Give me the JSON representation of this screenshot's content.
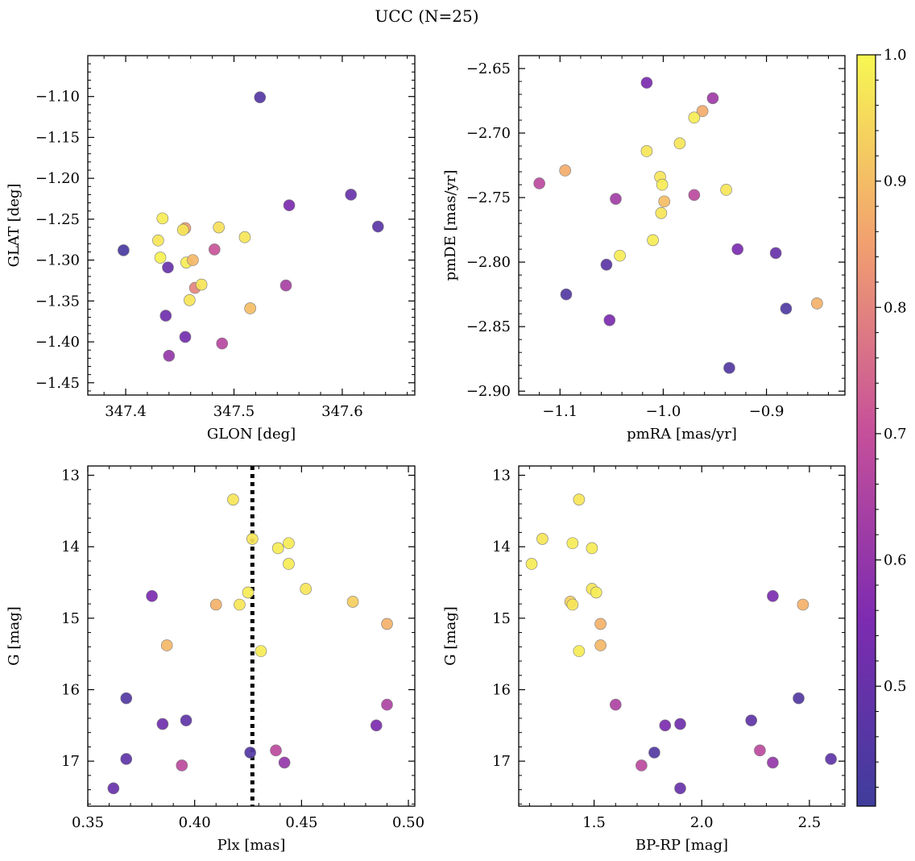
{
  "title": "UCC (N=25)",
  "colorbar": {
    "range": [
      0.405,
      1.0
    ],
    "ticks": [
      0.5,
      0.6,
      0.7,
      0.8,
      0.9,
      1.0
    ],
    "tick_labels": [
      "0.5",
      "0.6",
      "0.7",
      "0.8",
      "0.9",
      "1.0"
    ],
    "colormap": "plasma",
    "stops": [
      [
        0.0,
        "#3f3d9c"
      ],
      [
        0.25,
        "#7d2bb0"
      ],
      [
        0.5,
        "#c6509a"
      ],
      [
        0.75,
        "#f2a06f"
      ],
      [
        1.0,
        "#f7f752"
      ]
    ]
  },
  "chart_data": [
    {
      "type": "scatter",
      "xlabel": "GLON [deg]",
      "ylabel": "GLAT [deg]",
      "xlim": [
        347.365,
        347.667
      ],
      "ylim": [
        -1.465,
        -1.05
      ],
      "xticks": [
        347.4,
        347.5,
        347.6
      ],
      "xtick_labels": [
        "347.4",
        "347.5",
        "347.6"
      ],
      "yticks": [
        -1.1,
        -1.15,
        -1.2,
        -1.25,
        -1.3,
        -1.35,
        -1.4,
        -1.45
      ],
      "ytick_labels": [
        "−1.10",
        "−1.15",
        "−1.20",
        "−1.25",
        "−1.30",
        "−1.35",
        "−1.40",
        "−1.45"
      ],
      "points": [
        {
          "x": 347.524,
          "y": -1.101,
          "c": 0.46
        },
        {
          "x": 347.398,
          "y": -1.288,
          "c": 0.43
        },
        {
          "x": 347.434,
          "y": -1.249,
          "c": 0.98
        },
        {
          "x": 347.43,
          "y": -1.276,
          "c": 0.97
        },
        {
          "x": 347.432,
          "y": -1.297,
          "c": 0.99
        },
        {
          "x": 347.439,
          "y": -1.309,
          "c": 0.5
        },
        {
          "x": 347.437,
          "y": -1.368,
          "c": 0.52
        },
        {
          "x": 347.44,
          "y": -1.417,
          "c": 0.6
        },
        {
          "x": 347.455,
          "y": -1.261,
          "c": 0.85
        },
        {
          "x": 347.453,
          "y": -1.263,
          "c": 0.97
        },
        {
          "x": 347.456,
          "y": -1.303,
          "c": 0.98
        },
        {
          "x": 347.462,
          "y": -1.3,
          "c": 0.89
        },
        {
          "x": 347.464,
          "y": -1.334,
          "c": 0.8
        },
        {
          "x": 347.47,
          "y": -1.33,
          "c": 0.97
        },
        {
          "x": 347.459,
          "y": -1.349,
          "c": 0.97
        },
        {
          "x": 347.455,
          "y": -1.394,
          "c": 0.53
        },
        {
          "x": 347.486,
          "y": -1.26,
          "c": 0.96
        },
        {
          "x": 347.482,
          "y": -1.287,
          "c": 0.71
        },
        {
          "x": 347.489,
          "y": -1.402,
          "c": 0.67
        },
        {
          "x": 347.51,
          "y": -1.272,
          "c": 0.97
        },
        {
          "x": 347.515,
          "y": -1.359,
          "c": 0.9
        },
        {
          "x": 347.548,
          "y": -1.331,
          "c": 0.64
        },
        {
          "x": 347.551,
          "y": -1.233,
          "c": 0.55
        },
        {
          "x": 347.608,
          "y": -1.22,
          "c": 0.5
        },
        {
          "x": 347.633,
          "y": -1.259,
          "c": 0.47
        }
      ]
    },
    {
      "type": "scatter",
      "xlabel": "pmRA [mas/yr]",
      "ylabel": "pmDE [mas/yr]",
      "xlim": [
        -1.14,
        -0.824
      ],
      "ylim": [
        -2.903,
        -2.64
      ],
      "xticks": [
        -1.1,
        -1.0,
        -0.9
      ],
      "xtick_labels": [
        "−1.1",
        "−1.0",
        "−0.9"
      ],
      "yticks": [
        -2.65,
        -2.7,
        -2.75,
        -2.8,
        -2.85,
        -2.9
      ],
      "ytick_labels": [
        "−2.65",
        "−2.70",
        "−2.75",
        "−2.80",
        "−2.85",
        "−2.90"
      ],
      "points": [
        {
          "x": -1.016,
          "y": -2.661,
          "c": 0.55
        },
        {
          "x": -0.952,
          "y": -2.673,
          "c": 0.62
        },
        {
          "x": -0.962,
          "y": -2.683,
          "c": 0.87
        },
        {
          "x": -0.97,
          "y": -2.688,
          "c": 0.98
        },
        {
          "x": -0.984,
          "y": -2.708,
          "c": 0.97
        },
        {
          "x": -1.016,
          "y": -2.714,
          "c": 0.97
        },
        {
          "x": -1.095,
          "y": -2.729,
          "c": 0.87
        },
        {
          "x": -1.12,
          "y": -2.739,
          "c": 0.68
        },
        {
          "x": -1.003,
          "y": -2.734,
          "c": 0.97
        },
        {
          "x": -1.001,
          "y": -2.74,
          "c": 0.98
        },
        {
          "x": -0.999,
          "y": -2.753,
          "c": 0.9
        },
        {
          "x": -1.046,
          "y": -2.751,
          "c": 0.63
        },
        {
          "x": -0.97,
          "y": -2.748,
          "c": 0.68
        },
        {
          "x": -0.939,
          "y": -2.744,
          "c": 0.97
        },
        {
          "x": -1.002,
          "y": -2.762,
          "c": 0.97
        },
        {
          "x": -1.01,
          "y": -2.783,
          "c": 0.98
        },
        {
          "x": -1.042,
          "y": -2.795,
          "c": 0.98
        },
        {
          "x": -1.055,
          "y": -2.802,
          "c": 0.47
        },
        {
          "x": -0.928,
          "y": -2.79,
          "c": 0.55
        },
        {
          "x": -0.891,
          "y": -2.793,
          "c": 0.5
        },
        {
          "x": -1.094,
          "y": -2.825,
          "c": 0.45
        },
        {
          "x": -1.052,
          "y": -2.845,
          "c": 0.55
        },
        {
          "x": -0.881,
          "y": -2.836,
          "c": 0.44
        },
        {
          "x": -0.851,
          "y": -2.832,
          "c": 0.88
        },
        {
          "x": -0.936,
          "y": -2.882,
          "c": 0.45
        }
      ]
    },
    {
      "type": "scatter",
      "xlabel": "Plx [mas]",
      "ylabel": "G [mag]",
      "xlim": [
        0.35,
        0.503
      ],
      "ylim": [
        17.63,
        12.87
      ],
      "y_inverted": true,
      "xticks": [
        0.35,
        0.4,
        0.45,
        0.5
      ],
      "xtick_labels": [
        "0.35",
        "0.40",
        "0.45",
        "0.50"
      ],
      "yticks": [
        13,
        14,
        15,
        16,
        17
      ],
      "ytick_labels": [
        "13",
        "14",
        "15",
        "16",
        "17"
      ],
      "vline": {
        "x": 0.427,
        "style": "dotted"
      },
      "points": [
        {
          "x": 0.418,
          "y": 13.34,
          "c": 0.97
        },
        {
          "x": 0.427,
          "y": 13.89,
          "c": 0.97
        },
        {
          "x": 0.444,
          "y": 13.95,
          "c": 0.98
        },
        {
          "x": 0.439,
          "y": 14.02,
          "c": 0.98
        },
        {
          "x": 0.444,
          "y": 14.24,
          "c": 0.98
        },
        {
          "x": 0.452,
          "y": 14.59,
          "c": 0.97
        },
        {
          "x": 0.38,
          "y": 14.69,
          "c": 0.55
        },
        {
          "x": 0.474,
          "y": 14.77,
          "c": 0.93
        },
        {
          "x": 0.41,
          "y": 14.81,
          "c": 0.88
        },
        {
          "x": 0.421,
          "y": 14.81,
          "c": 0.97
        },
        {
          "x": 0.425,
          "y": 14.64,
          "c": 0.98
        },
        {
          "x": 0.49,
          "y": 15.08,
          "c": 0.88
        },
        {
          "x": 0.387,
          "y": 15.38,
          "c": 0.89
        },
        {
          "x": 0.431,
          "y": 15.46,
          "c": 0.98
        },
        {
          "x": 0.368,
          "y": 16.12,
          "c": 0.45
        },
        {
          "x": 0.49,
          "y": 16.21,
          "c": 0.65
        },
        {
          "x": 0.385,
          "y": 16.48,
          "c": 0.52
        },
        {
          "x": 0.396,
          "y": 16.43,
          "c": 0.48
        },
        {
          "x": 0.485,
          "y": 16.5,
          "c": 0.55
        },
        {
          "x": 0.368,
          "y": 16.97,
          "c": 0.48
        },
        {
          "x": 0.394,
          "y": 17.06,
          "c": 0.68
        },
        {
          "x": 0.438,
          "y": 16.85,
          "c": 0.68
        },
        {
          "x": 0.442,
          "y": 17.02,
          "c": 0.6
        },
        {
          "x": 0.426,
          "y": 16.88,
          "c": 0.45
        },
        {
          "x": 0.362,
          "y": 17.38,
          "c": 0.5
        }
      ]
    },
    {
      "type": "scatter",
      "xlabel": "BP-RP [mag]",
      "ylabel": "G [mag]",
      "xlim": [
        1.15,
        2.665
      ],
      "ylim": [
        17.63,
        12.87
      ],
      "y_inverted": true,
      "xticks": [
        1.5,
        2.0,
        2.5
      ],
      "xtick_labels": [
        "1.5",
        "2.0",
        "2.5"
      ],
      "yticks": [
        13,
        14,
        15,
        16,
        17
      ],
      "ytick_labels": [
        "13",
        "14",
        "15",
        "16",
        "17"
      ],
      "points": [
        {
          "x": 1.43,
          "y": 13.34,
          "c": 0.97
        },
        {
          "x": 1.26,
          "y": 13.89,
          "c": 0.97
        },
        {
          "x": 1.4,
          "y": 13.95,
          "c": 0.98
        },
        {
          "x": 1.49,
          "y": 14.02,
          "c": 0.98
        },
        {
          "x": 1.21,
          "y": 14.24,
          "c": 0.98
        },
        {
          "x": 1.49,
          "y": 14.59,
          "c": 0.97
        },
        {
          "x": 1.51,
          "y": 14.64,
          "c": 0.98
        },
        {
          "x": 1.39,
          "y": 14.77,
          "c": 0.93
        },
        {
          "x": 1.4,
          "y": 14.81,
          "c": 0.97
        },
        {
          "x": 2.33,
          "y": 14.69,
          "c": 0.55
        },
        {
          "x": 2.47,
          "y": 14.81,
          "c": 0.88
        },
        {
          "x": 1.53,
          "y": 15.08,
          "c": 0.88
        },
        {
          "x": 1.53,
          "y": 15.38,
          "c": 0.89
        },
        {
          "x": 1.43,
          "y": 15.46,
          "c": 0.98
        },
        {
          "x": 1.6,
          "y": 16.21,
          "c": 0.65
        },
        {
          "x": 2.45,
          "y": 16.12,
          "c": 0.45
        },
        {
          "x": 2.23,
          "y": 16.43,
          "c": 0.48
        },
        {
          "x": 1.83,
          "y": 16.5,
          "c": 0.55
        },
        {
          "x": 1.9,
          "y": 16.48,
          "c": 0.52
        },
        {
          "x": 1.78,
          "y": 16.88,
          "c": 0.45
        },
        {
          "x": 2.27,
          "y": 16.85,
          "c": 0.68
        },
        {
          "x": 2.33,
          "y": 17.02,
          "c": 0.6
        },
        {
          "x": 2.6,
          "y": 16.97,
          "c": 0.48
        },
        {
          "x": 1.72,
          "y": 17.06,
          "c": 0.68
        },
        {
          "x": 1.9,
          "y": 17.38,
          "c": 0.5
        }
      ]
    }
  ]
}
